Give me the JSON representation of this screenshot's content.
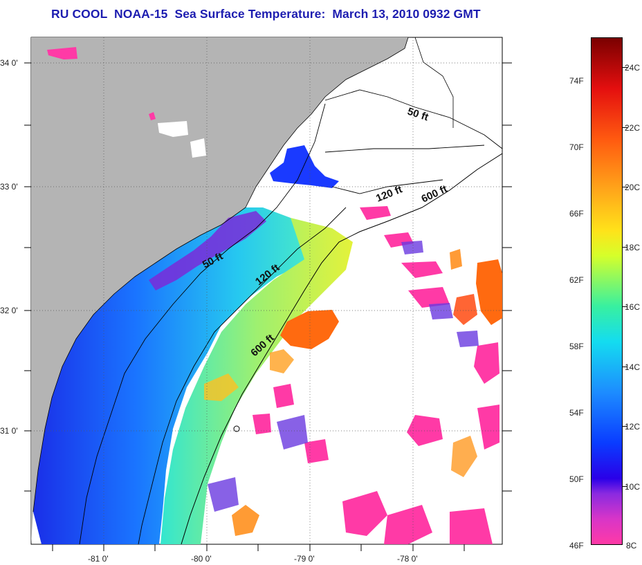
{
  "title": "RU COOL  NOAA-15  Sea Surface Temperature:  March 13, 2010 0932 GMT",
  "axes": {
    "lat_labels": [
      "34 0'",
      "33 0'",
      "32 0'",
      "31 0'"
    ],
    "lon_labels": [
      "-81 0'",
      "-80 0'",
      "-79 0'",
      "-78 0'"
    ]
  },
  "contours": {
    "c50_north": "50 ft",
    "c120_north": "120 ft",
    "c600_north": "600 ft",
    "c50_south": "50 ft",
    "c120_south": "120 ft",
    "c600_south": "600 ft"
  },
  "colorbar": {
    "fahrenheit_labels": [
      "74F",
      "70F",
      "66F",
      "62F",
      "58F",
      "54F",
      "50F",
      "46F"
    ],
    "celsius_labels": [
      "24C",
      "22C",
      "20C",
      "18C",
      "16C",
      "14C",
      "12C",
      "10C",
      "8C"
    ],
    "range_c": [
      8,
      25
    ]
  },
  "colors": {
    "land": "#b4b4b4",
    "title": "#1d1db0",
    "cloud": "#ffffff"
  }
}
